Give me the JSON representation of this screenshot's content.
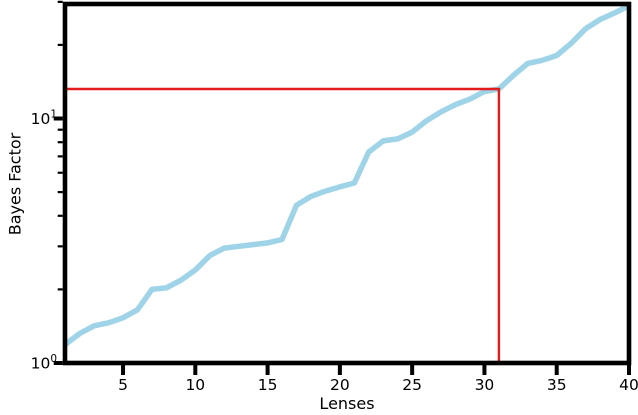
{
  "figure": {
    "background": "#ffffff"
  },
  "chart_data": {
    "type": "line",
    "title": "",
    "xlabel": "Lenses",
    "ylabel": "Bayes Factor",
    "x_scale": "linear",
    "y_scale": "log",
    "xlim": [
      1,
      40
    ],
    "ylim": [
      1,
      29.4
    ],
    "grid": false,
    "legend": "none",
    "x_major_ticks": [
      5,
      10,
      15,
      20,
      25,
      30,
      35,
      40
    ],
    "x_tick_labels": [
      "5",
      "10",
      "15",
      "20",
      "25",
      "30",
      "35",
      "40"
    ],
    "y_major_ticks": [
      {
        "value": 1,
        "base": "10",
        "exp": "0"
      },
      {
        "value": 10,
        "base": "10",
        "exp": "1"
      }
    ],
    "y_minor_ticks": [
      2,
      3,
      4,
      5,
      6,
      7,
      8,
      9,
      20,
      30
    ],
    "series": [
      {
        "name": "cumulative-bayes-factor",
        "color": "#9fd3e8",
        "line_width": 5.5,
        "x": [
          1,
          2,
          3,
          4,
          5,
          6,
          7,
          8,
          9,
          10,
          11,
          12,
          13,
          14,
          15,
          16,
          17,
          18,
          19,
          20,
          21,
          22,
          23,
          24,
          25,
          26,
          27,
          28,
          29,
          30,
          31,
          32,
          33,
          34,
          35,
          36,
          37,
          38,
          39,
          40
        ],
        "y": [
          1.19,
          1.32,
          1.42,
          1.46,
          1.53,
          1.65,
          2.0,
          2.03,
          2.18,
          2.4,
          2.75,
          2.95,
          3.0,
          3.05,
          3.1,
          3.2,
          4.42,
          4.8,
          5.05,
          5.25,
          5.45,
          7.3,
          8.1,
          8.25,
          8.8,
          9.8,
          10.65,
          11.4,
          12.0,
          12.9,
          13.2,
          15.0,
          16.8,
          17.3,
          18.1,
          20.3,
          23.3,
          25.4,
          27.0,
          28.9
        ]
      }
    ],
    "annotations": [
      {
        "name": "threshold-marker",
        "type": "hline-vline",
        "x": 31,
        "y": 13.2,
        "color": "#e31b1b",
        "line_width": 2.4
      }
    ],
    "axis_color": "#000000"
  }
}
